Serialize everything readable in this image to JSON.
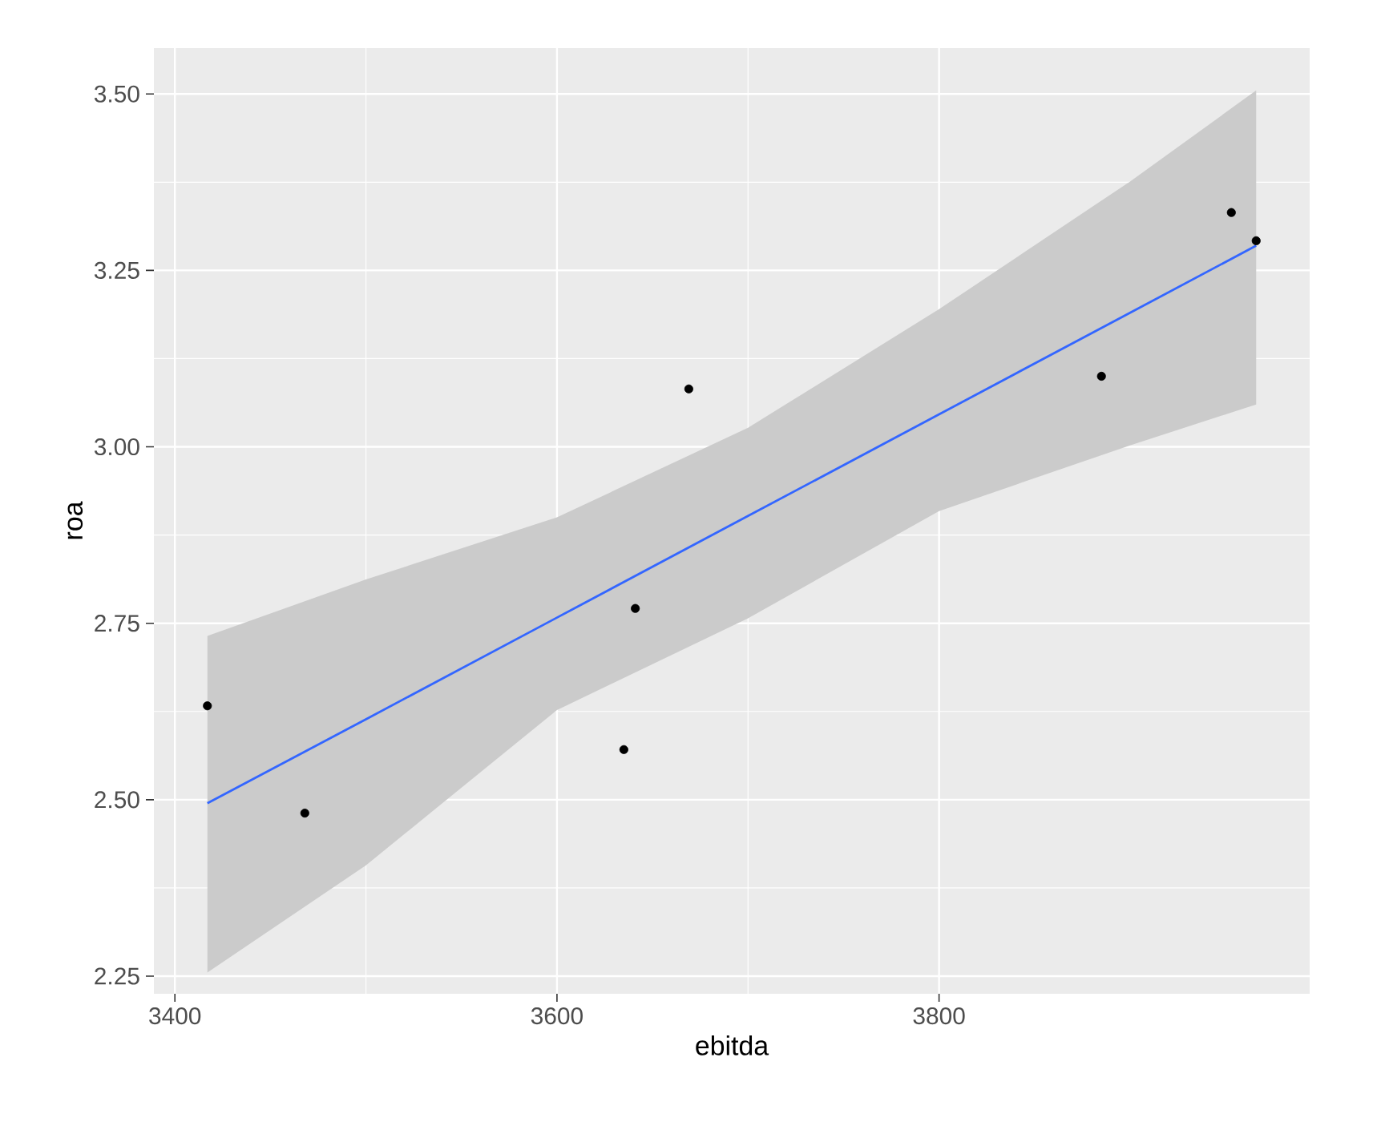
{
  "chart_data": {
    "type": "scatter",
    "xlabel": "ebitda",
    "ylabel": "roa",
    "xlim": [
      3389,
      3994
    ],
    "ylim": [
      2.225,
      3.565
    ],
    "xticks": [
      3400,
      3600,
      3800
    ],
    "yticks": [
      {
        "value": 2.25,
        "label": "2.25"
      },
      {
        "value": 2.5,
        "label": "2.50"
      },
      {
        "value": 2.75,
        "label": "2.75"
      },
      {
        "value": 3.0,
        "label": "3.00"
      },
      {
        "value": 3.25,
        "label": "3.25"
      },
      {
        "value": 3.5,
        "label": "3.50"
      }
    ],
    "grid": true,
    "series": [
      {
        "type": "line",
        "marker": "none",
        "color": "#3366ff",
        "x": [
          3417,
          3500,
          3600,
          3700,
          3800,
          3900,
          3966
        ],
        "values": [
          2.495,
          2.614,
          2.758,
          2.902,
          3.046,
          3.19,
          3.285
        ],
        "lower": [
          2.255,
          2.407,
          2.627,
          2.757,
          2.909,
          3.002,
          3.06
        ],
        "upper": [
          2.732,
          2.812,
          2.9,
          3.027,
          3.195,
          3.376,
          3.505
        ]
      },
      {
        "marker": "circle",
        "color": "#000000",
        "x": [
          3417,
          3468,
          3635,
          3641,
          3669,
          3885,
          3953,
          3966
        ],
        "values": [
          2.633,
          2.481,
          2.571,
          2.771,
          3.082,
          3.1,
          3.332,
          3.292
        ]
      }
    ]
  }
}
